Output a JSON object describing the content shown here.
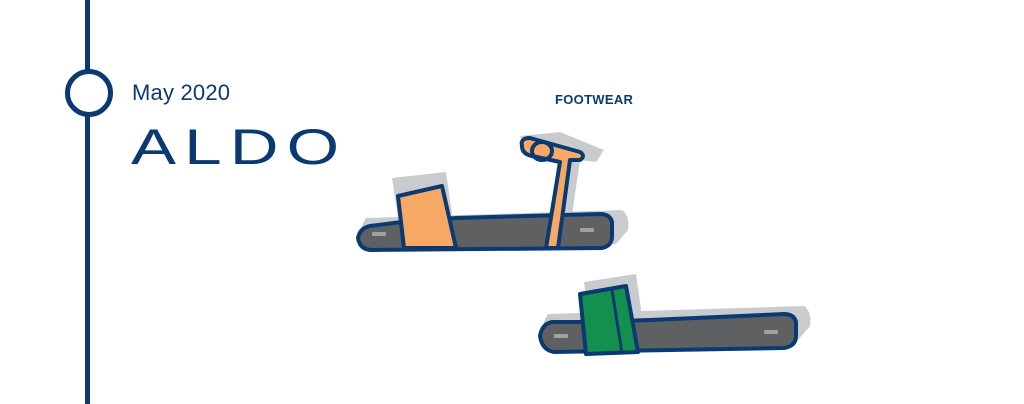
{
  "timeline": {
    "date": "May 2020",
    "brand": "ALDO",
    "category": "FOOTWEAR"
  },
  "colors": {
    "accent": "#0b3a73",
    "sole": "#5e6062",
    "strap_orange": "#f7a865",
    "strap_green": "#13904e",
    "shadow": "#c9cccf"
  },
  "illustrations": [
    "ankle-strap-sandal",
    "slide-sandal"
  ]
}
